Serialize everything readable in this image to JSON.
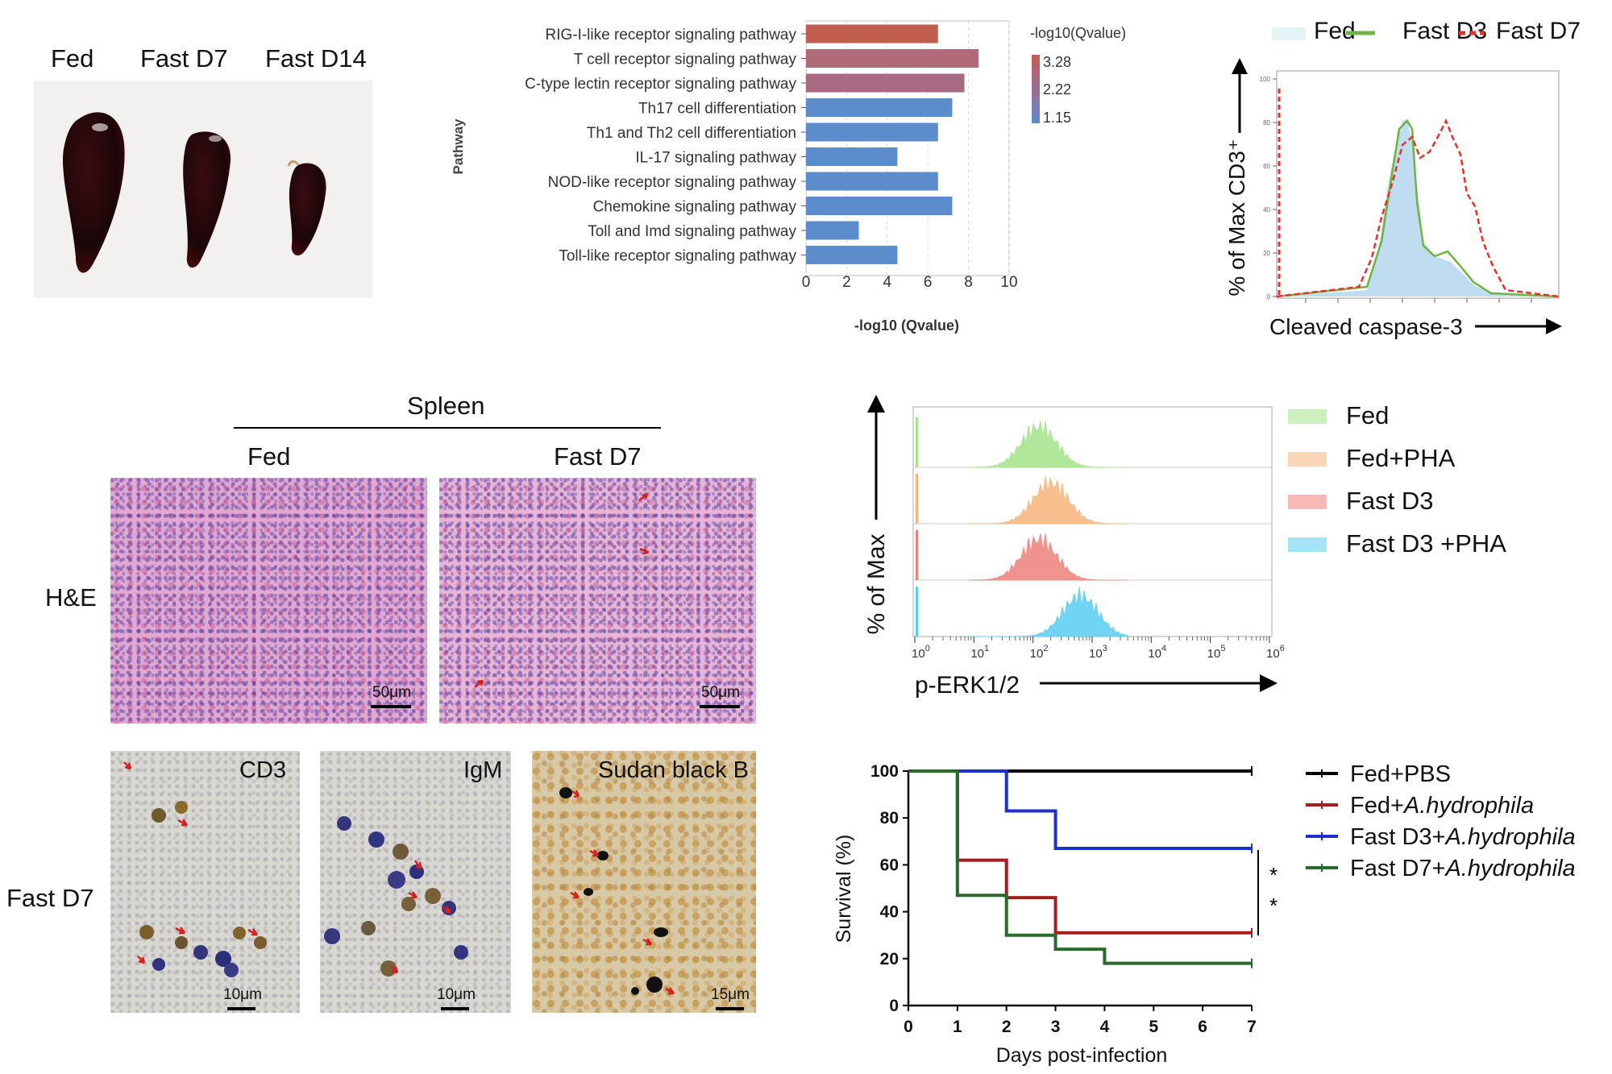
{
  "panel_a": {
    "labels": [
      "Fed",
      "Fast D7",
      "Fast D14"
    ]
  },
  "panel_b": {
    "chart_data": {
      "type": "bar",
      "orientation": "horizontal",
      "categories": [
        "RIG-I-like receptor signaling pathway",
        "T cell receptor signaling pathway",
        "C-type lectin receptor signaling pathway",
        "Th17 cell differentiation",
        "Th1 and Th2 cell differentiation",
        "IL-17 signaling pathway",
        "NOD-like receptor signaling pathway",
        "Chemokine signaling pathway",
        "Toll and Imd signaling pathway",
        "Toll-like receptor signaling pathway"
      ],
      "values": [
        6.5,
        8.5,
        7.8,
        7.2,
        6.5,
        4.5,
        6.5,
        7.2,
        2.6,
        4.5
      ],
      "colors": [
        "#c25e4f",
        "#b06a7a",
        "#a86a82",
        "#5b8ccb",
        "#5b8ccb",
        "#5b8ccb",
        "#5b8ccb",
        "#5b8ccb",
        "#5b8ccb",
        "#5b8ccb"
      ],
      "xlabel": "-log10 (Qvalue)",
      "ylabel": "Pathway",
      "xlim": [
        0,
        10
      ],
      "xticks": [
        "0",
        "2",
        "4",
        "6",
        "8",
        "10"
      ],
      "legend_title": "-log10(Qvalue)",
      "legend_ticks": [
        "3.28",
        "2.22",
        "1.15"
      ],
      "grid": true
    }
  },
  "panel_c": {
    "chart_data": {
      "type": "line",
      "series": [
        {
          "name": "Fed",
          "color": "#b9d8f0",
          "style": "filled"
        },
        {
          "name": "Fast D3",
          "color": "#6eb43f",
          "style": "solid"
        },
        {
          "name": "Fast D7",
          "color": "#e8312b",
          "style": "dashed"
        }
      ],
      "xlabel": "Cleaved caspase-3",
      "ylabel": "% of Max CD3⁺",
      "x_scale": "log",
      "yticks": [
        "0",
        "20",
        "40",
        "60",
        "80",
        "100"
      ]
    }
  },
  "panel_d": {
    "title": "Spleen",
    "columns": [
      "Fed",
      "Fast D7"
    ],
    "row_label": "H&E",
    "scale_bar": "50μm"
  },
  "panel_e": {
    "row_label": "Fast D7",
    "images": [
      {
        "label": "CD3",
        "scale": "10μm"
      },
      {
        "label": "IgM",
        "scale": "10μm"
      },
      {
        "label": "Sudan black B",
        "scale": "15μm"
      }
    ]
  },
  "panel_f": {
    "chart_data": {
      "type": "line",
      "series": [
        {
          "name": "Fed",
          "color": "#a4e38a",
          "peak": 2.1
        },
        {
          "name": "Fed+PHA",
          "color": "#f6b47a",
          "peak": 2.3
        },
        {
          "name": "Fast D3",
          "color": "#ee7f7a",
          "peak": 2.1
        },
        {
          "name": "Fast D3 +PHA",
          "color": "#59cdf0",
          "peak": 2.8
        }
      ],
      "xlabel": "p-ERK1/2",
      "ylabel": "% of Max",
      "x_scale": "log",
      "xticks": [
        "0",
        "1",
        "2",
        "3",
        "4",
        "5",
        "6"
      ],
      "xlim": [
        0,
        6
      ]
    }
  },
  "panel_g": {
    "chart_data": {
      "type": "line",
      "step": true,
      "x": [
        0,
        1,
        2,
        3,
        4,
        5,
        6,
        7
      ],
      "series": [
        {
          "name": "Fed+PBS",
          "color": "#000000",
          "values": [
            100,
            100,
            100,
            100,
            100,
            100,
            100,
            100
          ]
        },
        {
          "name": "Fed+A.hydrophila",
          "color": "#a51d1d",
          "values": [
            100,
            62,
            46,
            31,
            31,
            31,
            31,
            31
          ]
        },
        {
          "name": "Fast D3+A.hydrophila",
          "color": "#1f2fd0",
          "values": [
            100,
            100,
            83,
            67,
            67,
            67,
            67,
            67
          ]
        },
        {
          "name": "Fast D7+A.hydrophila",
          "color": "#2a6a2a",
          "values": [
            100,
            47,
            30,
            24,
            18,
            18,
            18,
            18
          ]
        }
      ],
      "xlabel": "Days post-infection",
      "ylabel": "Survival (%)",
      "xlim": [
        0,
        7
      ],
      "ylim": [
        0,
        100
      ],
      "xticks": [
        "0",
        "1",
        "2",
        "3",
        "4",
        "5",
        "6",
        "7"
      ],
      "yticks": [
        "0",
        "20",
        "40",
        "60",
        "80",
        "100"
      ],
      "annotations": [
        "*",
        "*"
      ]
    }
  }
}
